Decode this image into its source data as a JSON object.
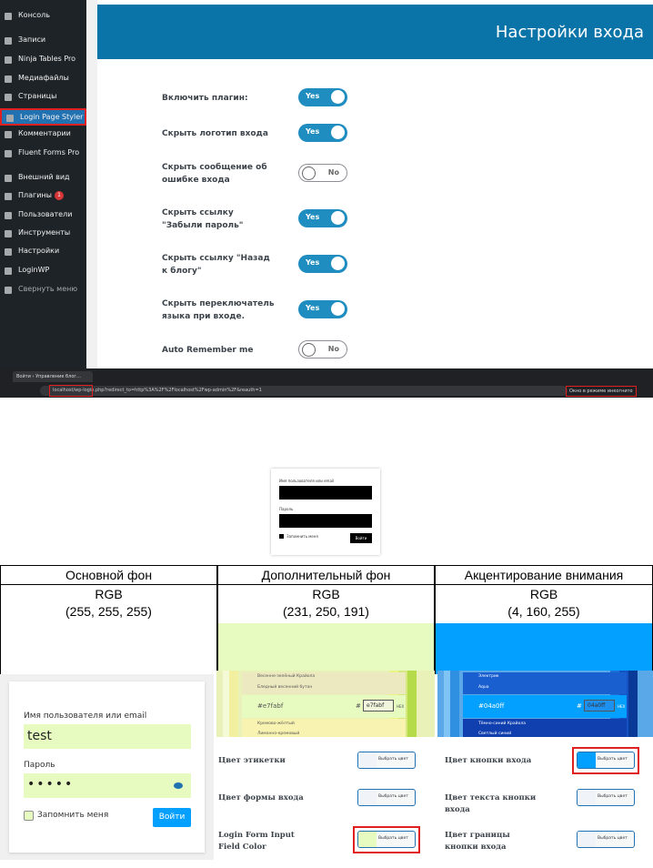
{
  "sidebar": {
    "items": [
      "Консоль",
      "Записи",
      "Ninja Tables Pro",
      "Медиафайлы",
      "Страницы",
      "Login Page Styler",
      "Комментарии",
      "Fluent Forms Pro",
      "Внешний вид",
      "Плагины",
      "Пользователи",
      "Инструменты",
      "Настройки",
      "LoginWP",
      "Свернуть меню"
    ],
    "badge": "1",
    "active": 5
  },
  "settings": {
    "title": "Настройки входа",
    "on_label": "Yes",
    "off_label": "No",
    "rows": [
      {
        "label": "Включить плагин:",
        "on": true
      },
      {
        "label": "Скрыть логотип входа",
        "on": true
      },
      {
        "label": "Скрыть сообщение об ошибке входа",
        "on": false
      },
      {
        "label": "Скрыть ссылку \"Забыли пароль\"",
        "on": true
      },
      {
        "label": "Скрыть ссылку \"Назад к блогу\"",
        "on": true
      },
      {
        "label": "Скрыть переключатель языка при входе.",
        "on": true
      },
      {
        "label": "Auto Remember me",
        "on": false
      }
    ]
  },
  "browser": {
    "tab": "Войти ‹ Управление блог…",
    "url": "localhost/wp-login.php?redirect_to=http%3A%2F%2Flocalhost%2Fwp-admin%2F&reauth=1",
    "incognito": "Окно в режиме инкогнито"
  },
  "login_small": {
    "user_label": "Имя пользователя или email",
    "pass_label": "Пароль",
    "remember": "Запомнить меня",
    "button": "Войти"
  },
  "table": {
    "headers": [
      "Основной фон",
      "Дополнительный фон",
      "Акцентирование внимания"
    ],
    "model": "RGB",
    "values": [
      "(255, 255, 255)",
      "(231, 250, 191)",
      "(4, 160, 255)"
    ],
    "colors": [
      "#ffffff",
      "#e7fabf",
      "#04a0ff"
    ]
  },
  "login_big": {
    "user_label": "Имя пользователя или email",
    "user_value": "test",
    "pass_label": "Пароль",
    "pass_value": "•••••",
    "remember": "Запомнить меня",
    "button": "Войти"
  },
  "pickers": [
    {
      "names_top": [
        "Весенне-зелёный Крайола",
        "Бледный весенний бутон"
      ],
      "current": "#e7fabf",
      "hash": "#",
      "hex": "e7fabf",
      "mode": "HEX",
      "names_bottom": [
        "Кремово-жёлтый",
        "Лимонно-кремовый"
      ]
    },
    {
      "names_top": [
        "Электрик",
        "Aqua"
      ],
      "current": "#04a0ff",
      "hash": "#",
      "hex": "04a0ff",
      "mode": "HEX",
      "names_bottom": [
        "Тёмно-синий Крайола",
        "Светлый синий"
      ]
    }
  ],
  "color_options": {
    "button": "Выбрать цвет",
    "left": [
      {
        "label": "Цвет этикетки",
        "swatch": "#f0f4f8"
      },
      {
        "label": "Цвет формы входа",
        "swatch": "#f0f4f8"
      },
      {
        "label": "Login Form Input Field Color",
        "swatch": "#e7fabf"
      }
    ],
    "right": [
      {
        "label": "Цвет кнопки входа",
        "swatch": "#04a0ff"
      },
      {
        "label": "Цвет текста кнопки входа",
        "swatch": "#f0f4f8"
      },
      {
        "label": "Цвет границы кнопки входа",
        "swatch": "#f0f4f8"
      }
    ]
  }
}
